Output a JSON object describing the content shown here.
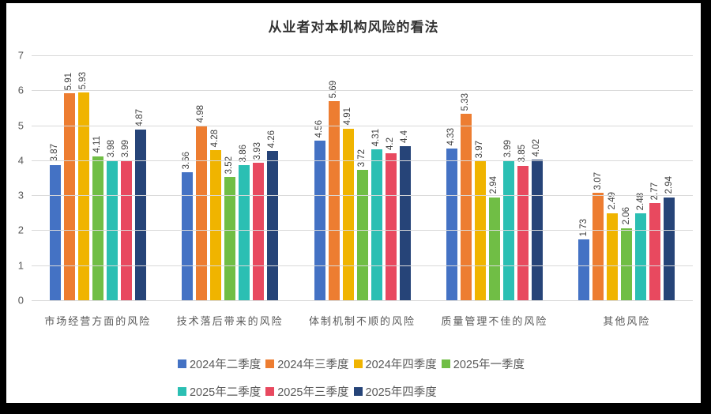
{
  "frame": {
    "background_color": "#000000",
    "canvas_color": "#ffffff"
  },
  "chart_data": {
    "type": "bar",
    "title": "从业者对本机构风险的看法",
    "xlabel": "",
    "ylabel": "",
    "grid": true,
    "gridline_color": "#d9d9d9",
    "legend_position": "bottom",
    "categories": [
      "市场经营方面的风险",
      "技术落后带来的风险",
      "体制机制不顺的风险",
      "质量管理不佳的风险",
      "其他风险"
    ],
    "series": [
      {
        "name": "2024年二季度",
        "color": "#4472C4",
        "values": [
          "3.87",
          "3.66",
          "4.56",
          "4.33",
          "1.73"
        ]
      },
      {
        "name": "2024年三季度",
        "color": "#ED7D31",
        "values": [
          "5.91",
          "4.98",
          "5.69",
          "5.33",
          "3.07"
        ]
      },
      {
        "name": "2024年四季度",
        "color": "#F0B400",
        "values": [
          "5.93",
          "4.28",
          "4.91",
          "3.97",
          "2.49"
        ]
      },
      {
        "name": "2025年一季度",
        "color": "#70BE45",
        "values": [
          "4.11",
          "3.52",
          "3.72",
          "2.94",
          "2.06"
        ]
      },
      {
        "name": "2025年二季度",
        "color": "#2BBFB3",
        "values": [
          "3.98",
          "3.86",
          "4.31",
          "3.99",
          "2.48"
        ]
      },
      {
        "name": "2025年三季度",
        "color": "#E8495F",
        "values": [
          "3.99",
          "3.93",
          "4.2",
          "3.85",
          "2.77"
        ]
      },
      {
        "name": "2025年四季度",
        "color": "#264478",
        "values": [
          "4.87",
          "4.26",
          "4.4",
          "4.02",
          "2.94"
        ]
      }
    ],
    "y_axis": {
      "min": 0,
      "max": 7,
      "step": 1,
      "ticks": [
        "0",
        "1",
        "2",
        "3",
        "4",
        "5",
        "6",
        "7"
      ]
    },
    "legend_rows": [
      [
        "2024年二季度",
        "2024年三季度",
        "2024年四季度",
        "2025年一季度"
      ],
      [
        "2025年二季度",
        "2025年三季度",
        "2025年四季度"
      ]
    ],
    "data_label_color": "#404040",
    "axis_label_color": "#595959"
  }
}
